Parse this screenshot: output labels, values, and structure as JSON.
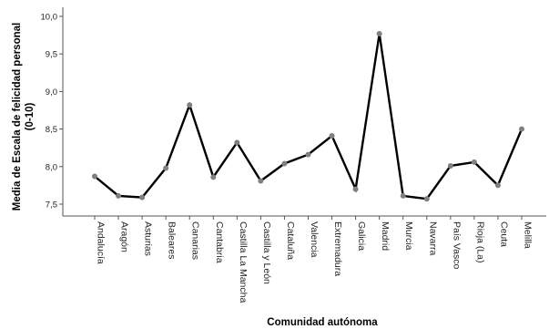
{
  "chart_data": {
    "type": "line",
    "xlabel": "Comunidad autónoma",
    "ylabel_lines": [
      "Media de Escala de felicidad personal",
      "(0-10)"
    ],
    "ylim": [
      7.35,
      10.0
    ],
    "yticks": [
      7.5,
      8.0,
      8.5,
      9.0,
      9.5,
      10.0
    ],
    "ytick_labels": [
      "7,5",
      "8,0",
      "8,5",
      "9,0",
      "9,5",
      "10,0"
    ],
    "grid": false,
    "categories": [
      "Andalucía",
      "Aragón",
      "Asturias",
      "Baleares",
      "Canarias",
      "Cantabria",
      "Castilla La Mancha",
      "Castilla y León",
      "Cataluña",
      "Valencia",
      "Extremadura",
      "Galicia",
      "Madrid",
      "Murcia",
      "Navarra",
      "País Vasco",
      "Rioja (La)",
      "Ceuta",
      "Melilla"
    ],
    "values": [
      7.87,
      7.61,
      7.59,
      7.98,
      8.82,
      7.86,
      8.32,
      7.81,
      8.04,
      8.16,
      8.41,
      7.7,
      9.77,
      7.61,
      7.57,
      8.01,
      8.06,
      7.75,
      8.5
    ],
    "line_color": "#000000",
    "marker_color": "#808080"
  }
}
